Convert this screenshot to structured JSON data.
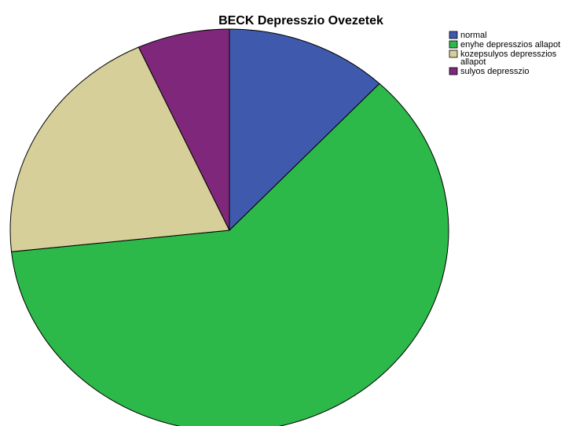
{
  "chart_data": {
    "type": "pie",
    "title": "BECK Depresszio Ovezetek",
    "slices": [
      {
        "label": "normal",
        "value": 12.0,
        "color": "#3f59ad"
      },
      {
        "label": "enyhe depresszios allapot",
        "value": 61.3,
        "color": "#2db84a"
      },
      {
        "label": "kozepsulyos depresszios allapot",
        "value": 19.9,
        "color": "#d6cf99"
      },
      {
        "label": "sulyos depresszio",
        "value": 6.8,
        "color": "#7f287b"
      }
    ],
    "legend": {
      "placement": "top-right",
      "entries": [
        {
          "lines": [
            "normal"
          ],
          "color": "#3f59ad"
        },
        {
          "lines": [
            "enyhe depresszios allapot"
          ],
          "color": "#2db84a"
        },
        {
          "lines": [
            "kozepsulyos depresszios",
            "allapot"
          ],
          "color": "#d6cf99"
        },
        {
          "lines": [
            "sulyos depresszio"
          ],
          "color": "#7f287b"
        }
      ]
    }
  }
}
